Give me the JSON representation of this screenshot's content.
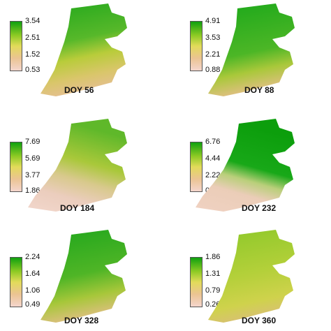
{
  "panels": [
    {
      "doy": "DOY 56",
      "legend": [
        "3.54",
        "2.51",
        "1.52",
        "0.53"
      ],
      "pattern": "mixed-green"
    },
    {
      "doy": "DOY 88",
      "legend": [
        "4.91",
        "3.53",
        "2.21",
        "0.88"
      ],
      "pattern": "green-dominant"
    },
    {
      "doy": "DOY 184",
      "legend": [
        "7.69",
        "5.69",
        "3.77",
        "1.86"
      ],
      "pattern": "green-north-pink-south"
    },
    {
      "doy": "DOY 232",
      "legend": [
        "6.76",
        "4.44",
        "2.22",
        "0"
      ],
      "pattern": "dark-green-north-pink-south"
    },
    {
      "doy": "DOY 328",
      "legend": [
        "2.24",
        "1.64",
        "1.06",
        "0.49"
      ],
      "pattern": "green-dominant"
    },
    {
      "doy": "DOY 360",
      "legend": [
        "1.86",
        "1.31",
        "0.79",
        "0.26"
      ],
      "pattern": "yellow-green"
    }
  ],
  "colors": {
    "high": "#18a818",
    "mid": "#c8d43a",
    "low": "#ebc9a8",
    "lowest": "#f2d7cc"
  }
}
